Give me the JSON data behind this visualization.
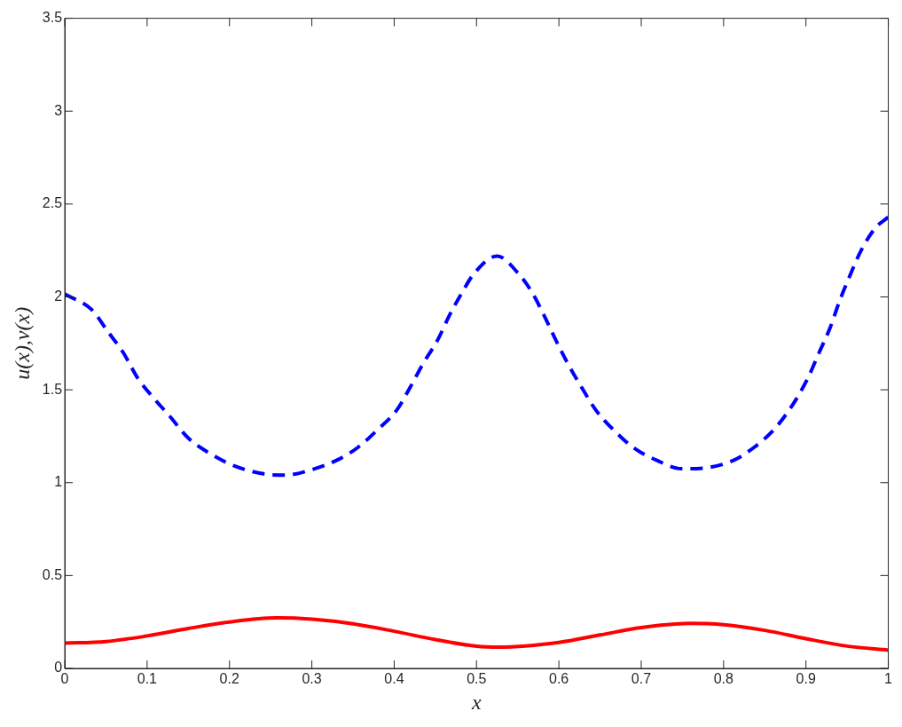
{
  "chart_data": {
    "type": "line",
    "xlabel": "x",
    "ylabel": "u(x),v(x)",
    "xlim": [
      0,
      1
    ],
    "ylim": [
      0,
      3.5
    ],
    "xticks": [
      0,
      0.1,
      0.2,
      0.3,
      0.4,
      0.5,
      0.6,
      0.7,
      0.8,
      0.9,
      1
    ],
    "yticks": [
      0,
      0.5,
      1,
      1.5,
      2,
      2.5,
      3,
      3.5
    ],
    "grid": false,
    "legend": false,
    "marker": "none",
    "series": [
      {
        "color": "#ff0000",
        "line_style": "solid",
        "x": [
          0,
          0.05,
          0.1,
          0.15,
          0.2,
          0.257,
          0.3,
          0.35,
          0.4,
          0.45,
          0.5,
          0.527,
          0.6,
          0.65,
          0.7,
          0.759,
          0.8,
          0.85,
          0.9,
          0.95,
          1
        ],
        "values": [
          0.136,
          0.145,
          0.175,
          0.215,
          0.25,
          0.272,
          0.265,
          0.24,
          0.2,
          0.155,
          0.12,
          0.115,
          0.14,
          0.18,
          0.22,
          0.242,
          0.235,
          0.205,
          0.16,
          0.12,
          0.098
        ]
      },
      {
        "color": "#0000ff",
        "line_style": "dashed",
        "x": [
          0,
          0.033,
          0.052,
          0.071,
          0.089,
          0.107,
          0.127,
          0.15,
          0.177,
          0.206,
          0.238,
          0.267,
          0.3,
          0.33,
          0.356,
          0.381,
          0.403,
          0.419,
          0.435,
          0.453,
          0.467,
          0.482,
          0.496,
          0.525,
          0.55,
          0.568,
          0.582,
          0.596,
          0.611,
          0.628,
          0.645,
          0.665,
          0.69,
          0.719,
          0.749,
          0.779,
          0.812,
          0.837,
          0.862,
          0.884,
          0.902,
          0.916,
          0.929,
          0.941,
          0.952,
          0.967,
          0.984,
          1
        ],
        "values": [
          2.015,
          1.93,
          1.815,
          1.7,
          1.56,
          1.46,
          1.36,
          1.24,
          1.155,
          1.09,
          1.05,
          1.04,
          1.07,
          1.12,
          1.19,
          1.29,
          1.39,
          1.51,
          1.64,
          1.77,
          1.9,
          2.02,
          2.12,
          2.22,
          2.13,
          2.02,
          1.9,
          1.77,
          1.64,
          1.51,
          1.39,
          1.29,
          1.19,
          1.12,
          1.075,
          1.08,
          1.12,
          1.19,
          1.29,
          1.42,
          1.56,
          1.7,
          1.83,
          1.98,
          2.1,
          2.25,
          2.37,
          2.43
        ]
      }
    ]
  }
}
